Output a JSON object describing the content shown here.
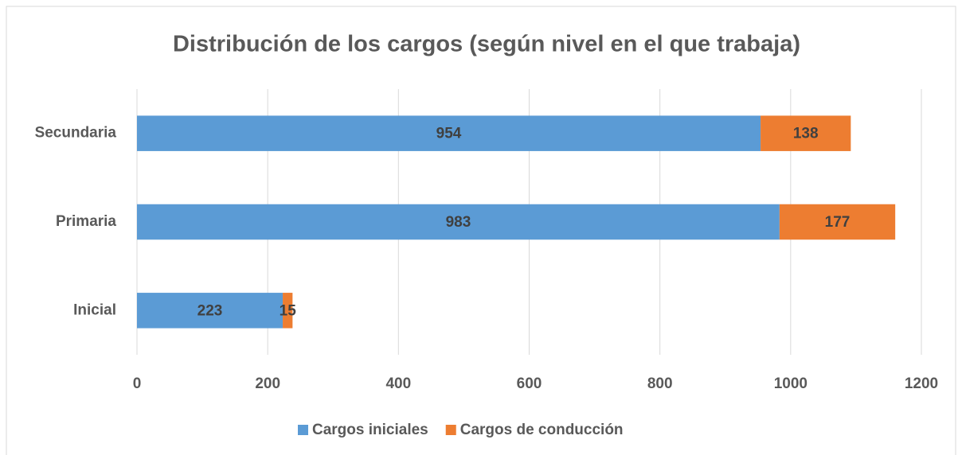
{
  "chart_data": {
    "type": "bar",
    "orientation": "horizontal",
    "stacked": true,
    "title": "Distribución de los cargos (según nivel en el que trabaja)",
    "categories": [
      "Inicial",
      "Primaria",
      "Secundaria"
    ],
    "series": [
      {
        "name": "Cargos iniciales",
        "color": "#5b9bd5",
        "values": [
          223,
          983,
          954
        ]
      },
      {
        "name": "Cargos de conducción",
        "color": "#ed7d31",
        "values": [
          15,
          177,
          138
        ]
      }
    ],
    "xlim": [
      0,
      1200
    ],
    "xticks": [
      0,
      200,
      400,
      600,
      800,
      1000,
      1200
    ],
    "grid": true,
    "legend": "bottom"
  }
}
